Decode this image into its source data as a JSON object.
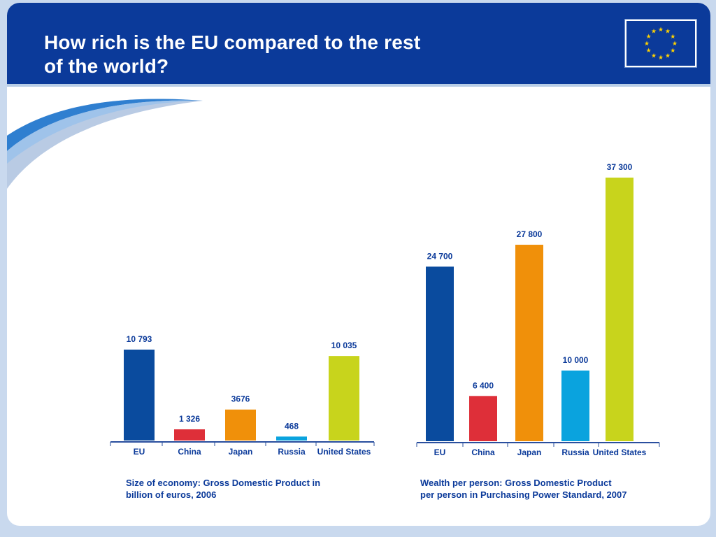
{
  "header": {
    "title_line1": "How rich is the EU compared to the rest",
    "title_line2": "of the world?"
  },
  "colors": {
    "header_bg": "#0b3a9a",
    "value_label": "#0b3a9a",
    "category_label": "#0b3a9a",
    "flag_star": "#ffd200"
  },
  "chart_data": [
    {
      "type": "bar",
      "categories": [
        "EU",
        "China",
        "Japan",
        "Russia",
        "United States"
      ],
      "values": [
        10793,
        1326,
        3676,
        468,
        10035
      ],
      "value_labels": [
        "10 793",
        "1 326",
        "3676",
        "468",
        "10 035"
      ],
      "bar_colors": [
        "#0a4b9e",
        "#de2f39",
        "#f0900a",
        "#0aa3de",
        "#c8d41c"
      ],
      "caption_line1": "Size of economy: Gross Domestic Product in",
      "caption_line2": "billion of euros, 2006",
      "ylim": [
        0,
        11000
      ]
    },
    {
      "type": "bar",
      "categories": [
        "EU",
        "China",
        "Japan",
        "Russia",
        "United States"
      ],
      "values": [
        24700,
        6400,
        27800,
        10000,
        37300
      ],
      "value_labels": [
        "24 700",
        "6 400",
        "27 800",
        "10 000",
        "37 300"
      ],
      "bar_colors": [
        "#0a4b9e",
        "#de2f39",
        "#f0900a",
        "#0aa3de",
        "#c8d41c"
      ],
      "caption_line1": "Wealth per person: Gross Domestic Product",
      "caption_line2": "per person in Purchasing Power Standard, 2007",
      "ylim": [
        0,
        38000
      ]
    }
  ]
}
